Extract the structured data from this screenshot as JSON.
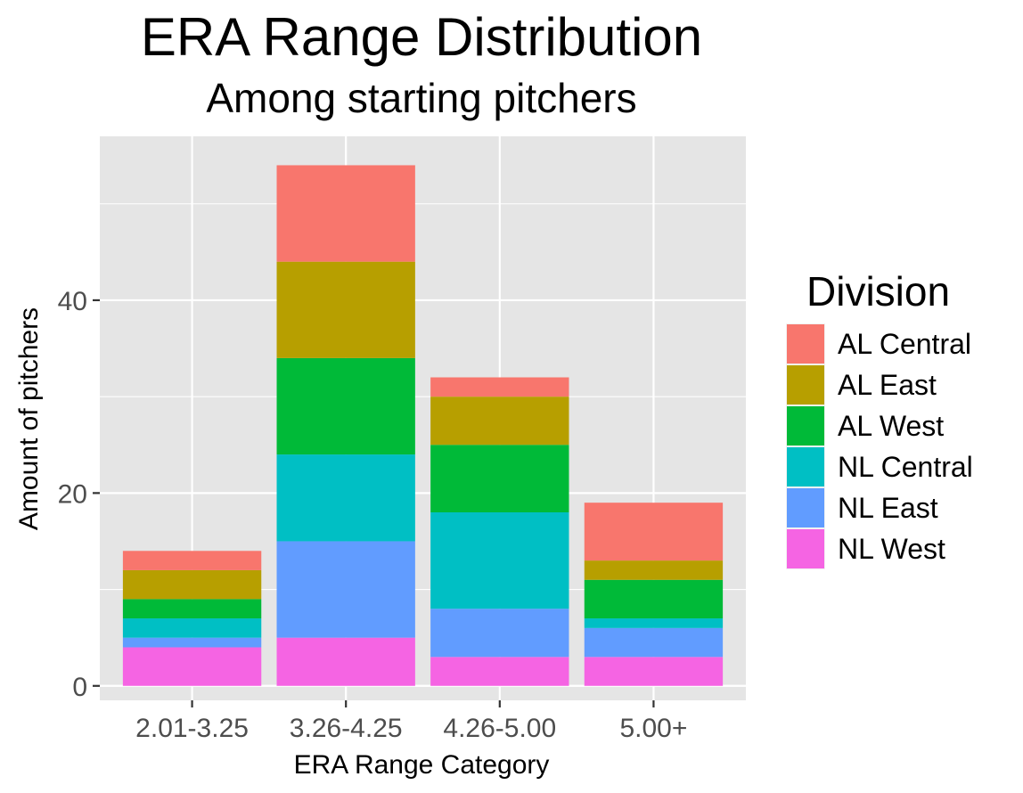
{
  "chart_data": {
    "type": "bar",
    "stacked": true,
    "title": "ERA Range Distribution",
    "subtitle": "Among starting pitchers",
    "xlabel": "ERA Range Category",
    "ylabel": "Amount of pitchers",
    "categories": [
      "2.01-3.25",
      "3.26-4.25",
      "4.26-5.00",
      "5.00+"
    ],
    "ylim": [
      -1.5,
      57
    ],
    "yticks": [
      0,
      20,
      40
    ],
    "ytick_labels": [
      "0",
      "20",
      "40"
    ],
    "legend_title": "Division",
    "legend_position": "right",
    "series": [
      {
        "name": "AL Central",
        "color": "#F8766D",
        "values": [
          2,
          10,
          2,
          6
        ]
      },
      {
        "name": "AL East",
        "color": "#B79F00",
        "values": [
          3,
          10,
          5,
          2
        ]
      },
      {
        "name": "AL West",
        "color": "#00BA38",
        "values": [
          2,
          10,
          7,
          4
        ]
      },
      {
        "name": "NL Central",
        "color": "#00BFC4",
        "values": [
          2,
          9,
          10,
          1
        ]
      },
      {
        "name": "NL East",
        "color": "#619CFF",
        "values": [
          1,
          10,
          5,
          3
        ]
      },
      {
        "name": "NL West",
        "color": "#F564E3",
        "values": [
          4,
          5,
          3,
          3
        ]
      }
    ]
  }
}
